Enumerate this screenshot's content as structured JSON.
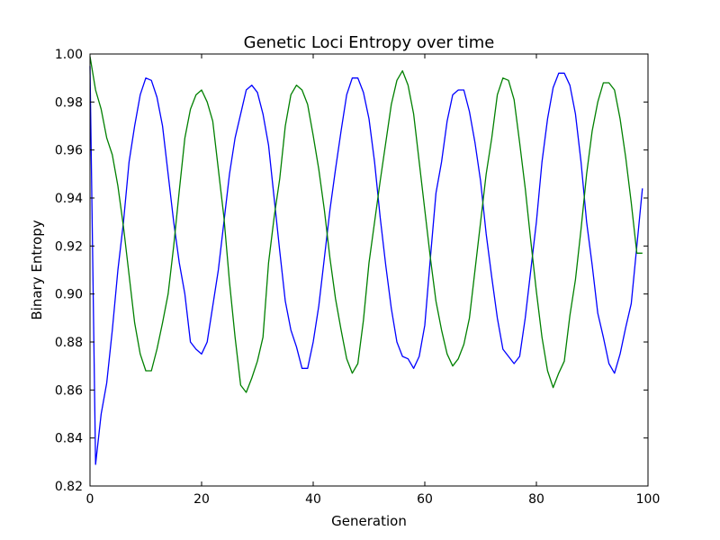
{
  "chart_data": {
    "type": "line",
    "title": "Genetic Loci Entropy over time",
    "xlabel": "Generation",
    "ylabel": "Binary Entropy",
    "xlim": [
      0,
      100
    ],
    "ylim": [
      0.82,
      1.0
    ],
    "xticks": [
      0,
      20,
      40,
      60,
      80,
      100
    ],
    "yticks": [
      0.82,
      0.84,
      0.86,
      0.88,
      0.9,
      0.92,
      0.94,
      0.96,
      0.98,
      1.0
    ],
    "xtick_labels": [
      "0",
      "20",
      "40",
      "60",
      "80",
      "100"
    ],
    "ytick_labels": [
      "0.82",
      "0.84",
      "0.86",
      "0.88",
      "0.90",
      "0.92",
      "0.94",
      "0.96",
      "0.98",
      "1.00"
    ],
    "grid": false,
    "legend": "none",
    "series": [
      {
        "color": "#0000ff",
        "x": [
          0,
          1,
          2,
          3,
          4,
          5,
          6,
          7,
          8,
          9,
          10,
          11,
          12,
          13,
          14,
          15,
          16,
          17,
          18,
          19,
          20,
          21,
          22,
          23,
          24,
          25,
          26,
          27,
          28,
          29,
          30,
          31,
          32,
          33,
          34,
          35,
          36,
          37,
          38,
          39,
          40,
          41,
          42,
          43,
          44,
          45,
          46,
          47,
          48,
          49,
          50,
          51,
          52,
          53,
          54,
          55,
          56,
          57,
          58,
          59,
          60,
          61,
          62,
          63,
          64,
          65,
          66,
          67,
          68,
          69,
          70,
          71,
          72,
          73,
          74,
          75,
          76,
          77,
          78,
          79,
          80,
          81,
          82,
          83,
          84,
          85,
          86,
          87,
          88,
          89,
          90,
          91,
          92,
          93,
          94,
          95,
          96,
          97,
          98,
          99
        ],
        "values": [
          0.995,
          0.829,
          0.85,
          0.863,
          0.885,
          0.91,
          0.93,
          0.955,
          0.97,
          0.983,
          0.99,
          0.989,
          0.982,
          0.97,
          0.95,
          0.93,
          0.913,
          0.9,
          0.88,
          0.877,
          0.875,
          0.88,
          0.895,
          0.91,
          0.93,
          0.95,
          0.965,
          0.975,
          0.985,
          0.987,
          0.984,
          0.975,
          0.962,
          0.94,
          0.918,
          0.897,
          0.885,
          0.878,
          0.869,
          0.869,
          0.88,
          0.895,
          0.915,
          0.935,
          0.952,
          0.968,
          0.983,
          0.99,
          0.99,
          0.984,
          0.973,
          0.955,
          0.932,
          0.912,
          0.894,
          0.88,
          0.874,
          0.873,
          0.869,
          0.874,
          0.887,
          0.915,
          0.942,
          0.955,
          0.972,
          0.983,
          0.985,
          0.985,
          0.976,
          0.963,
          0.947,
          0.925,
          0.907,
          0.89,
          0.877,
          0.874,
          0.871,
          0.874,
          0.89,
          0.91,
          0.93,
          0.955,
          0.973,
          0.986,
          0.992,
          0.992,
          0.987,
          0.975,
          0.955,
          0.93,
          0.912,
          0.892,
          0.882,
          0.871,
          0.867,
          0.875,
          0.886,
          0.896,
          0.92,
          0.944
        ]
      },
      {
        "color": "#008000",
        "x": [
          0,
          1,
          2,
          3,
          4,
          5,
          6,
          7,
          8,
          9,
          10,
          11,
          12,
          13,
          14,
          15,
          16,
          17,
          18,
          19,
          20,
          21,
          22,
          23,
          24,
          25,
          26,
          27,
          28,
          29,
          30,
          31,
          32,
          33,
          34,
          35,
          36,
          37,
          38,
          39,
          40,
          41,
          42,
          43,
          44,
          45,
          46,
          47,
          48,
          49,
          50,
          51,
          52,
          53,
          54,
          55,
          56,
          57,
          58,
          59,
          60,
          61,
          62,
          63,
          64,
          65,
          66,
          67,
          68,
          69,
          70,
          71,
          72,
          73,
          74,
          75,
          76,
          77,
          78,
          79,
          80,
          81,
          82,
          83,
          84,
          85,
          86,
          87,
          88,
          89,
          90,
          91,
          92,
          93,
          94,
          95,
          96,
          97,
          98,
          99
        ],
        "values": [
          0.999,
          0.985,
          0.977,
          0.965,
          0.958,
          0.945,
          0.928,
          0.908,
          0.888,
          0.875,
          0.868,
          0.868,
          0.877,
          0.888,
          0.9,
          0.92,
          0.943,
          0.965,
          0.977,
          0.983,
          0.985,
          0.98,
          0.972,
          0.952,
          0.932,
          0.905,
          0.882,
          0.862,
          0.859,
          0.865,
          0.872,
          0.882,
          0.913,
          0.932,
          0.948,
          0.97,
          0.983,
          0.987,
          0.985,
          0.979,
          0.966,
          0.952,
          0.935,
          0.915,
          0.898,
          0.885,
          0.873,
          0.867,
          0.871,
          0.889,
          0.913,
          0.93,
          0.947,
          0.963,
          0.979,
          0.989,
          0.993,
          0.987,
          0.975,
          0.955,
          0.935,
          0.915,
          0.897,
          0.885,
          0.875,
          0.87,
          0.873,
          0.879,
          0.89,
          0.91,
          0.93,
          0.95,
          0.965,
          0.983,
          0.99,
          0.989,
          0.981,
          0.963,
          0.944,
          0.922,
          0.901,
          0.882,
          0.868,
          0.861,
          0.867,
          0.872,
          0.891,
          0.906,
          0.927,
          0.95,
          0.968,
          0.98,
          0.988,
          0.988,
          0.985,
          0.973,
          0.957,
          0.938,
          0.917,
          0.917
        ]
      }
    ]
  }
}
